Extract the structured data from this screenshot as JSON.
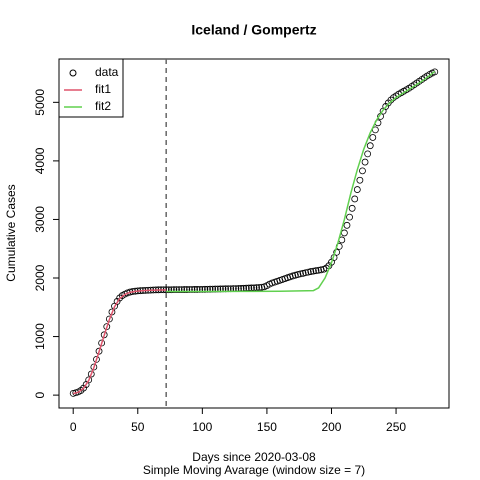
{
  "chart_data": {
    "type": "scatter",
    "title": "Iceland / Gompertz",
    "x_label": "Days since 2020-03-08",
    "subtitle": "Simple Moving Avarage (window size = 7)",
    "y_label": "Cumulative Cases",
    "xlim": [
      -11,
      291
    ],
    "ylim": [
      -220,
      5740
    ],
    "xticks": [
      0,
      50,
      100,
      150,
      200,
      250
    ],
    "yticks": [
      0,
      1000,
      2000,
      3000,
      4000,
      5000
    ],
    "vline": 72,
    "legend": "top-left",
    "series": [
      {
        "name": "data",
        "color": "#000000",
        "marker": "circle",
        "x": [
          0,
          2,
          4,
          6,
          8,
          10,
          12,
          14,
          16,
          18,
          20,
          22,
          24,
          26,
          28,
          30,
          32,
          34,
          36,
          38,
          40,
          42,
          44,
          46,
          48,
          50,
          52,
          54,
          56,
          58,
          60,
          62,
          64,
          66,
          68,
          70,
          72,
          74,
          76,
          78,
          80,
          82,
          84,
          86,
          88,
          90,
          92,
          94,
          96,
          98,
          100,
          102,
          104,
          106,
          108,
          110,
          112,
          114,
          116,
          118,
          120,
          122,
          124,
          126,
          128,
          130,
          132,
          134,
          136,
          138,
          140,
          142,
          144,
          146,
          148,
          150,
          152,
          154,
          156,
          158,
          160,
          162,
          164,
          166,
          168,
          170,
          172,
          174,
          176,
          178,
          180,
          182,
          184,
          186,
          188,
          190,
          192,
          194,
          196,
          198,
          200,
          202,
          204,
          206,
          208,
          210,
          212,
          214,
          216,
          218,
          220,
          222,
          224,
          226,
          228,
          230,
          232,
          234,
          236,
          238,
          240,
          242,
          244,
          246,
          248,
          250,
          252,
          254,
          256,
          258,
          260,
          262,
          264,
          266,
          268,
          270,
          272,
          274,
          276,
          278,
          280
        ],
        "values": [
          30,
          40,
          55,
          80,
          120,
          180,
          260,
          360,
          480,
          610,
          750,
          890,
          1030,
          1170,
          1300,
          1420,
          1520,
          1600,
          1660,
          1700,
          1725,
          1745,
          1760,
          1770,
          1775,
          1780,
          1783,
          1786,
          1789,
          1791,
          1793,
          1795,
          1797,
          1798,
          1799,
          1800,
          1800,
          1800,
          1800,
          1801,
          1801,
          1802,
          1802,
          1803,
          1803,
          1804,
          1804,
          1805,
          1805,
          1806,
          1806,
          1807,
          1808,
          1809,
          1810,
          1811,
          1812,
          1813,
          1814,
          1815,
          1816,
          1817,
          1818,
          1819,
          1820,
          1822,
          1824,
          1826,
          1828,
          1830,
          1832,
          1835,
          1838,
          1842,
          1850,
          1870,
          1895,
          1915,
          1930,
          1945,
          1960,
          1975,
          1990,
          2005,
          2020,
          2035,
          2048,
          2060,
          2070,
          2080,
          2090,
          2100,
          2110,
          2118,
          2125,
          2132,
          2140,
          2150,
          2170,
          2210,
          2270,
          2350,
          2440,
          2540,
          2650,
          2770,
          2900,
          3040,
          3190,
          3350,
          3510,
          3670,
          3830,
          3980,
          4120,
          4260,
          4400,
          4530,
          4650,
          4760,
          4850,
          4930,
          4990,
          5040,
          5080,
          5110,
          5140,
          5165,
          5190,
          5215,
          5240,
          5270,
          5300,
          5330,
          5360,
          5390,
          5420,
          5450,
          5475,
          5500,
          5520
        ]
      },
      {
        "name": "fit1",
        "color": "#DF536B",
        "marker": "line",
        "x": [
          0,
          4,
          8,
          12,
          16,
          20,
          24,
          28,
          32,
          36,
          40,
          44,
          48,
          52,
          56,
          60,
          64,
          68,
          72
        ],
        "values": [
          25,
          50,
          115,
          250,
          470,
          740,
          1020,
          1290,
          1510,
          1650,
          1720,
          1755,
          1772,
          1781,
          1786,
          1790,
          1793,
          1795,
          1796
        ]
      },
      {
        "name": "fit2",
        "color": "#61D04F",
        "marker": "line",
        "x": [
          72,
          100,
          130,
          160,
          186,
          190,
          195,
          200,
          205,
          210,
          215,
          220,
          225,
          230,
          235,
          240,
          245,
          250,
          255,
          260,
          265,
          270,
          275,
          280
        ],
        "values": [
          1770,
          1770,
          1771,
          1773,
          1785,
          1830,
          2000,
          2260,
          2600,
          3000,
          3450,
          3850,
          4200,
          4480,
          4700,
          4870,
          4990,
          5080,
          5150,
          5220,
          5290,
          5360,
          5440,
          5530
        ]
      }
    ]
  }
}
